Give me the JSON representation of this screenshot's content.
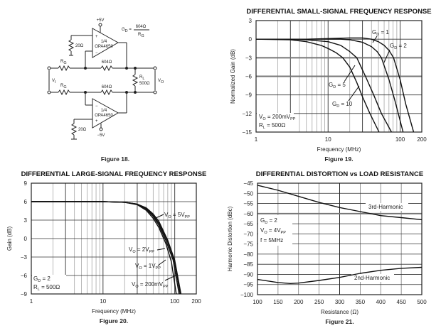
{
  "figure18": {
    "caption": "Figure 18.",
    "gain_eq": {
      "lhs_main": "G",
      "lhs_sub": "D",
      "numerator": "604Ω",
      "den_main": "R",
      "den_sub": "G"
    },
    "supply_pos": "+5V",
    "supply_neg": "−5V",
    "opamp_top": {
      "frac": "1/4",
      "part": "OPA4650"
    },
    "opamp_bottom": {
      "frac": "1/4",
      "part": "OPA4650"
    },
    "r_ground_top": "20Ω",
    "r_ground_bottom": "20Ω",
    "rg_top": {
      "main": "R",
      "sub": "G"
    },
    "rg_bottom": {
      "main": "R",
      "sub": "G"
    },
    "rf_top": "604Ω",
    "rf_bottom": "604Ω",
    "rl": {
      "main": "R",
      "sub": "L",
      "value": "500Ω"
    },
    "vi": {
      "main": "V",
      "sub": "I"
    },
    "vo": {
      "main": "V",
      "sub": "O"
    }
  },
  "chart_data": [
    {
      "id": "fig19",
      "type": "line",
      "title": "DIFFERENTIAL SMALL-SIGNAL FREQUENCY RESPONSE",
      "caption": "Figure 19.",
      "xlabel": "Frequency (MHz)",
      "ylabel": "Normalized Gain (dB)",
      "xscale": "log",
      "xlim": [
        1,
        200
      ],
      "ylim": [
        -15,
        3
      ],
      "xticks": [
        "1",
        "10",
        "100",
        "200"
      ],
      "xtick_values": [
        1,
        10,
        100,
        200
      ],
      "yticks": [
        "3",
        "0",
        "−3",
        "−6",
        "−9",
        "−12",
        "−15"
      ],
      "ytick_values": [
        3,
        0,
        -3,
        -6,
        -9,
        -12,
        -15
      ],
      "grid": true,
      "series": [
        {
          "name": "GD = 1",
          "x": [
            1,
            5,
            10,
            20,
            30,
            40,
            50,
            60,
            70,
            81,
            100,
            120,
            154
          ],
          "y": [
            0,
            0,
            0.1,
            0.2,
            0.2,
            0,
            -0.4,
            -1.0,
            -1.8,
            -3,
            -6.5,
            -10.5,
            -15
          ]
        },
        {
          "name": "GD = 2",
          "x": [
            1,
            5,
            10,
            15,
            20,
            30,
            40,
            48,
            55,
            70,
            85,
            110
          ],
          "y": [
            0,
            0,
            0,
            0,
            -0.1,
            -0.5,
            -1.2,
            -2.0,
            -3,
            -6.5,
            -10,
            -15
          ]
        },
        {
          "name": "GD = 5",
          "x": [
            1,
            3,
            5,
            10,
            15,
            20,
            25,
            33,
            43,
            55,
            76
          ],
          "y": [
            0,
            0,
            -0.1,
            -0.4,
            -1.0,
            -2.0,
            -3,
            -6,
            -9,
            -12,
            -15
          ]
        },
        {
          "name": "GD = 10",
          "x": [
            1,
            3,
            5,
            8,
            10,
            13,
            16,
            20,
            25,
            30,
            38,
            51
          ],
          "y": [
            0,
            -0.1,
            -0.4,
            -1.0,
            -1.5,
            -2.2,
            -3,
            -4.5,
            -7,
            -9.3,
            -12,
            -15
          ]
        }
      ],
      "annotations": [
        {
          "main": "G",
          "sub": "D",
          "rest": " = 1"
        },
        {
          "main": "G",
          "sub": "D",
          "rest": " = 2"
        },
        {
          "main": "G",
          "sub": "D",
          "rest": " = 5"
        },
        {
          "main": "G",
          "sub": "D",
          "rest": " = 10"
        },
        {
          "main": "V",
          "sub": "O",
          "rest": " = 200mV",
          "sub2": "PP"
        },
        {
          "main": "R",
          "sub": "L",
          "rest": " = 500Ω"
        }
      ]
    },
    {
      "id": "fig20",
      "type": "line",
      "title": "DIFFERENTIAL LARGE-SIGNAL FREQUENCY RESPONSE",
      "caption": "Figure 20.",
      "xlabel": "Frequency (MHz)",
      "ylabel": "Gain (dB)",
      "xscale": "log",
      "xlim": [
        1,
        200
      ],
      "ylim": [
        -9,
        9
      ],
      "xticks": [
        "1",
        "10",
        "100",
        "200"
      ],
      "xtick_values": [
        1,
        10,
        100,
        200
      ],
      "yticks": [
        "9",
        "6",
        "3",
        "0",
        "−3",
        "−6",
        "−9"
      ],
      "ytick_values": [
        9,
        6,
        3,
        0,
        -3,
        -6,
        -9
      ],
      "grid": true,
      "series": [
        {
          "name": "VO = 5VPP",
          "x": [
            1,
            10,
            20,
            30,
            40,
            50,
            60,
            75,
            90,
            105
          ],
          "y": [
            6,
            6,
            5.9,
            5.5,
            4.6,
            3.3,
            1.8,
            -0.8,
            -3.8,
            -9
          ]
        },
        {
          "name": "VO = 2VPP",
          "x": [
            1,
            10,
            20,
            30,
            40,
            50,
            60,
            75,
            95,
            115
          ],
          "y": [
            6,
            6,
            5.9,
            5.6,
            4.8,
            3.6,
            2.2,
            -0.3,
            -3.5,
            -9
          ]
        },
        {
          "name": "VO = 1VPP",
          "x": [
            1,
            10,
            20,
            30,
            40,
            50,
            60,
            78,
            98,
            119
          ],
          "y": [
            6,
            6,
            5.9,
            5.6,
            4.9,
            3.8,
            2.5,
            -0.3,
            -3.5,
            -9
          ]
        },
        {
          "name": "VO = 200mVPP",
          "x": [
            1,
            10,
            20,
            30,
            40,
            50,
            60,
            80,
            100,
            122
          ],
          "y": [
            6,
            6,
            5.9,
            5.6,
            5.0,
            4.0,
            2.8,
            -0.3,
            -3.5,
            -9
          ]
        }
      ],
      "annotations": [
        {
          "main": "V",
          "sub": "O",
          "rest": " = 5V",
          "sub2": "PP"
        },
        {
          "main": "V",
          "sub": "O",
          "rest": " = 2V",
          "sub2": "PP"
        },
        {
          "main": "V",
          "sub": "O",
          "rest": " = 1V",
          "sub2": "PP"
        },
        {
          "main": "V",
          "sub": "O",
          "rest": " = 200mV",
          "sub2": "PP"
        },
        {
          "main": "G",
          "sub": "D",
          "rest": " = 2"
        },
        {
          "main": "R",
          "sub": "L",
          "rest": " = 500Ω"
        }
      ]
    },
    {
      "id": "fig21",
      "type": "line",
      "title": "DIFFERENTIAL DISTORTION vs LOAD RESISTANCE",
      "caption": "Figure 21.",
      "xlabel": "Resistance (Ω)",
      "ylabel": "Harmonic Distortion (dBc)",
      "xscale": "linear",
      "xlim": [
        100,
        500
      ],
      "ylim": [
        -100,
        -45
      ],
      "xticks": [
        "100",
        "150",
        "200",
        "250",
        "300",
        "350",
        "400",
        "450",
        "500"
      ],
      "xtick_values": [
        100,
        150,
        200,
        250,
        300,
        350,
        400,
        450,
        500
      ],
      "yticks": [
        "−45",
        "−50",
        "−55",
        "−60",
        "−65",
        "−70",
        "−75",
        "−80",
        "−85",
        "−90",
        "−95",
        "−100"
      ],
      "ytick_values": [
        -45,
        -50,
        -55,
        -60,
        -65,
        -70,
        -75,
        -80,
        -85,
        -90,
        -95,
        -100
      ],
      "grid": true,
      "series": [
        {
          "name": "3rd-Harmonic",
          "x": [
            100,
            150,
            200,
            250,
            300,
            350,
            400,
            450,
            500
          ],
          "y": [
            -46,
            -48.5,
            -51.5,
            -54.5,
            -57,
            -59,
            -61,
            -62,
            -63
          ]
        },
        {
          "name": "2nd-Harmonic",
          "x": [
            100,
            150,
            180,
            200,
            250,
            300,
            350,
            400,
            450,
            500
          ],
          "y": [
            -92.5,
            -94,
            -94.5,
            -94.3,
            -93,
            -91.5,
            -89.5,
            -88,
            -87,
            -86.5
          ]
        }
      ],
      "annotations": [
        {
          "main": "3rd-Harmonic",
          "sub": "",
          "rest": ""
        },
        {
          "main": "2nd-Harmonic",
          "sub": "",
          "rest": ""
        },
        {
          "main": "G",
          "sub": "D",
          "rest": " = 2"
        },
        {
          "main": "V",
          "sub": "O",
          "rest": " = 4V",
          "sub2": "PP"
        },
        {
          "main": "f = 5MHz",
          "sub": "",
          "rest": ""
        }
      ]
    }
  ]
}
